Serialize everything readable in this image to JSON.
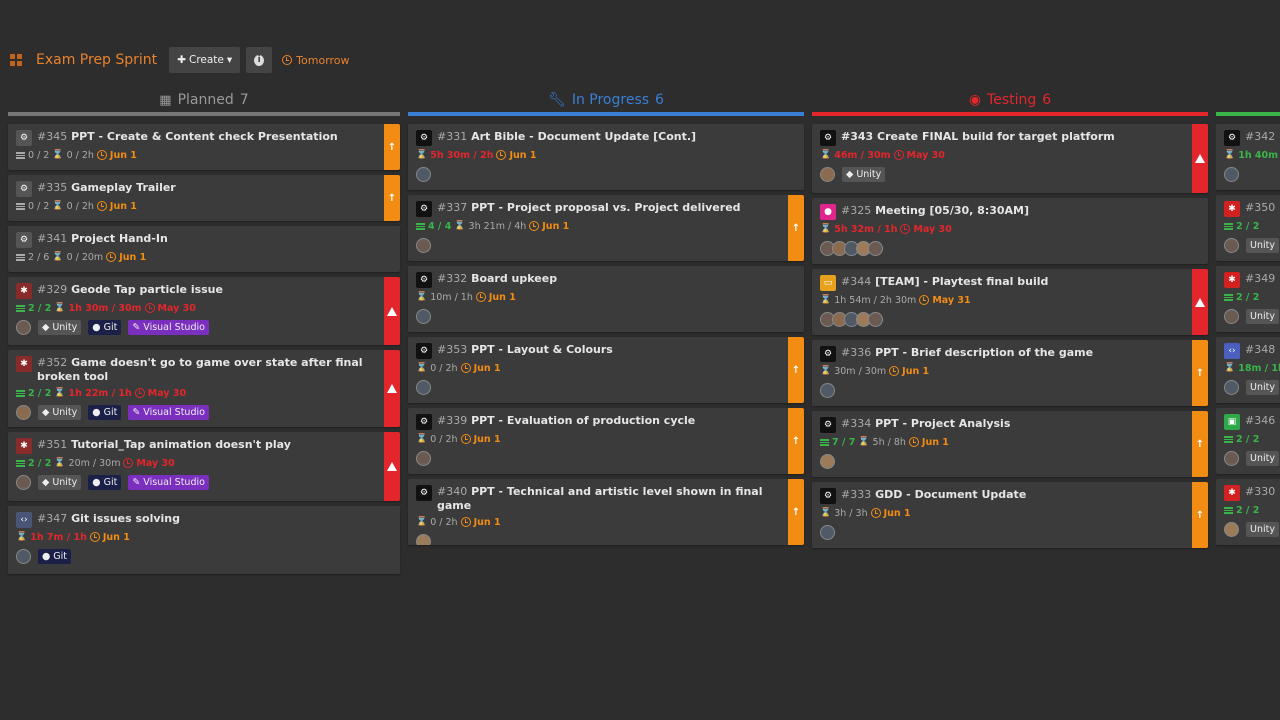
{
  "header": {
    "title": "Exam Prep Sprint",
    "create_label": "Create",
    "due_label": "Tomorrow"
  },
  "colors": {
    "planned": "#777777",
    "progress": "#3a7fd5",
    "testing": "#e3262c",
    "next": "#39b54a",
    "accent": "#e8822e"
  },
  "columns": [
    {
      "name": "Planned",
      "count": "7",
      "cards": [
        {
          "id": "#345",
          "title": "PPT - Create & Content check Presentation",
          "icon": "gear-icon",
          "sub": "0 / 2",
          "time": "0 / 2h",
          "due": "Jun 1",
          "ribbon": "orange",
          "tags": []
        },
        {
          "id": "#335",
          "title": "Gameplay Trailer",
          "icon": "gear-icon",
          "sub": "0 / 2",
          "time": "0 / 2h",
          "due": "Jun 1",
          "ribbon": "orange",
          "tags": []
        },
        {
          "id": "#341",
          "title": "Project Hand-In",
          "icon": "gear-icon",
          "sub": "2 / 6",
          "time": "0 / 20m",
          "due": "Jun 1",
          "ribbon": "",
          "tags": []
        },
        {
          "id": "#329",
          "title": "Geode Tap particle issue",
          "icon": "bug-icon",
          "sub": "2 / 2",
          "time": "1h 30m / 30m",
          "due": "May 30",
          "ribbon": "red",
          "tags": [
            "Unity",
            "Git",
            "Visual Studio"
          ]
        },
        {
          "id": "#352",
          "title": "Game doesn't go to game over state after final broken tool",
          "icon": "bug-icon",
          "sub": "2 / 2",
          "time": "1h 22m / 1h",
          "due": "May 30",
          "ribbon": "red",
          "tags": [
            "Unity",
            "Git",
            "Visual Studio"
          ]
        },
        {
          "id": "#351",
          "title": "Tutorial_Tap animation doesn't play",
          "icon": "bug-icon",
          "sub": "2 / 2",
          "time": "20m / 30m",
          "due": "May 30",
          "ribbon": "red",
          "tags": [
            "Unity",
            "Git",
            "Visual Studio"
          ]
        },
        {
          "id": "#347",
          "title": "Git issues solving",
          "icon": "code-icon",
          "sub": "",
          "time": "1h 7m / 1h",
          "due": "Jun 1",
          "ribbon": "",
          "tags": [
            "Git"
          ]
        }
      ]
    },
    {
      "name": "In Progress",
      "count": "6",
      "cards": [
        {
          "id": "#331",
          "title": "Art Bible - Document Update [Cont.]",
          "time": "5h 30m / 2h",
          "due": "Jun 1"
        },
        {
          "id": "#337",
          "title": "PPT - Project proposal vs. Project delivered",
          "sub": "4 / 4",
          "time": "3h 21m / 4h",
          "due": "Jun 1"
        },
        {
          "id": "#332",
          "title": "Board upkeep",
          "time": "10m / 1h",
          "due": "Jun 1"
        },
        {
          "id": "#353",
          "title": "PPT - Layout & Colours",
          "time": "0 / 2h",
          "due": "Jun 1"
        },
        {
          "id": "#339",
          "title": "PPT - Evaluation of production cycle",
          "time": "0 / 2h",
          "due": "Jun 1"
        },
        {
          "id": "#340",
          "title": "PPT - Technical and artistic level shown in final game",
          "time": "0 / 2h",
          "due": "Jun 1"
        }
      ]
    },
    {
      "name": "Testing",
      "count": "6",
      "cards": [
        {
          "id": "#343",
          "title": "Create FINAL build for target platform",
          "time": "46m / 30m",
          "due": "May 30",
          "tag": "Unity"
        },
        {
          "id": "#325",
          "title": "Meeting [05/30, 8:30AM]",
          "time": "5h 32m / 1h",
          "due": "May 30"
        },
        {
          "id": "#344",
          "title": "[TEAM] - Playtest final build",
          "time": "1h 54m / 2h 30m",
          "due": "May 31"
        },
        {
          "id": "#336",
          "title": "PPT - Brief description of the game",
          "time": "30m / 30m",
          "due": "Jun 1"
        },
        {
          "id": "#334",
          "title": "PPT - Project Analysis",
          "sub": "7 / 7",
          "time": "5h / 8h",
          "due": "Jun 1"
        },
        {
          "id": "#333",
          "title": "GDD - Document Update",
          "time": "3h / 3h",
          "due": "Jun 1"
        }
      ]
    }
  ],
  "partial": [
    {
      "id": "#342",
      "meta": "1h 40m / 1h"
    },
    {
      "id": "#350",
      "meta": "2 / 2"
    },
    {
      "id": "#349",
      "meta": "2 / 2"
    },
    {
      "id": "#348",
      "meta": "18m / 1h"
    },
    {
      "id": "#346",
      "meta": "2 / 2"
    },
    {
      "id": "#330",
      "meta": "2 / 2"
    }
  ],
  "partial_tag": "Unity"
}
